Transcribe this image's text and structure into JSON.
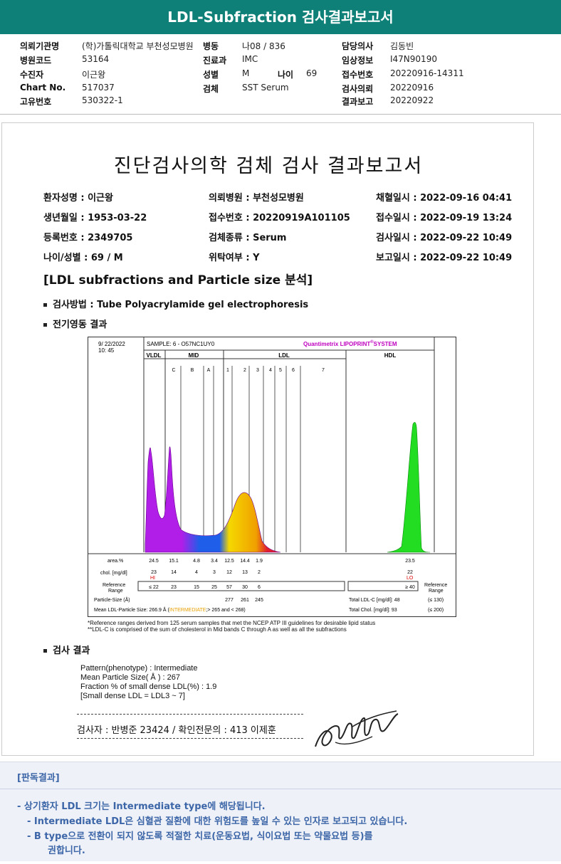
{
  "header": {
    "title": "LDL-Subfraction 검사결과보고서",
    "labels": {
      "institution": "의뢰기관명",
      "hospital_code": "병원코드",
      "patient": "수진자",
      "chart_no": "Chart No.",
      "unique_no": "고유번호",
      "ward": "병동",
      "dept": "진료과",
      "sex": "성별",
      "age": "나이",
      "specimen": "검체",
      "doctor": "담당의사",
      "clinical_info": "임상정보",
      "receipt_no": "접수번호",
      "request_date": "검사의뢰",
      "report_date": "결과보고"
    },
    "values": {
      "institution": "(학)가톨릭대학교 부천성모병원",
      "hospital_code": "53164",
      "patient": "이근왕",
      "chart_no": "517037",
      "unique_no": "530322-1",
      "ward": "나08 / 836",
      "dept": "IMC",
      "sex": "M",
      "age": "69",
      "specimen": "SST Serum",
      "doctor": "김동빈",
      "clinical_info": "I47N90190",
      "receipt_no": "20220916-14311",
      "request_date": "20220916",
      "report_date": "20220922"
    }
  },
  "report": {
    "title": "진단검사의학 검체 검사 결과보고서",
    "info": [
      [
        "환자성명 : 이근왕",
        "의뢰병원 : 부천성모병원",
        "채혈일시 : 2022-09-16 04:41"
      ],
      [
        "생년월일 : 1953-03-22",
        "접수번호 : 20220919A101105",
        "접수일시 : 2022-09-19 13:24"
      ],
      [
        "등록번호 : 2349705",
        "검체종류 : Serum",
        "검사일시 : 2022-09-22 10:49"
      ],
      [
        "나이/성별 : 69 / M",
        "위탁여부 : Y",
        "보고일시 : 2022-09-22 10:49"
      ]
    ],
    "section": "[LDL subfractions and Particle size 분석]",
    "method": "검사방법 : Tube Polyacrylamide gel electrophoresis",
    "electro": "전기영동 결과",
    "result_heading": "검사 결과",
    "footnote1": "*Reference ranges derived from 125 serum samples that met the NCEP ATP III guidelines for desirable lipid status",
    "footnote2": "**LDL-C is comprised of the sum of cholesterol in Mid bands C through A as well as all the subfractions",
    "results": [
      "Pattern(phenotype) : Intermediate",
      "Mean Particle Size( Å ) : 267",
      "Fraction % of small dense LDL(%) : 1.9",
      "[Small dense LDL = LDL3 ~ 7]"
    ],
    "examiner": "검사자 : 반병준  23424  /  확인전문의 : 413  이제훈"
  },
  "chart": {
    "date": "9/ 22/2022",
    "time": "10: 45",
    "sample": "SAMPLE:   6 - O57NC1UY0",
    "brand": "Quantimetrix LIPOPRINT",
    "brand_reg": "®",
    "brand_tail": "SYSTEM",
    "groups": [
      "VLDL",
      "MID",
      "LDL",
      "HDL"
    ],
    "bands": [
      "C",
      "B",
      "A",
      "1",
      "2",
      "3",
      "4",
      "5",
      "6",
      "7"
    ],
    "row_labels": {
      "area": "area.%",
      "chol": "chol. [mg/dl]",
      "ref1": "Reference",
      "ref2": "Range"
    },
    "area": [
      "24.5",
      "15.1",
      "4.8",
      "3.4",
      "12.5",
      "14.4",
      "1.9",
      "23.5"
    ],
    "chol": [
      "23",
      "14",
      "4",
      "3",
      "12",
      "13",
      "2",
      "22"
    ],
    "hi": "HI",
    "lo": "LO",
    "ref": [
      "≤ 22",
      "23",
      "15",
      "25",
      "57",
      "30",
      "6",
      "≥ 40"
    ],
    "particle_label": "Particle-Size (Å)",
    "particle": [
      "277",
      "261",
      "245"
    ],
    "mean_label": "Mean LDL-Particle Size:  266.9 Å (",
    "mean_mid": "INTERMEDIATE",
    "mean_tail": ";> 265 and < 268)",
    "total_ldl": "Total LDL-C [mg/dl]:  48",
    "total_ldl_ref": "(≤ 130)",
    "total_chol": "Total Chol. [mg/dl]:   93",
    "total_chol_ref": "(≤ 200)",
    "hdl_ref_label1": "Reference",
    "hdl_ref_label2": "Range",
    "colors": {
      "vldl": "#b01ee8",
      "mid": "#1e5ee8",
      "ldl": "#f5d800",
      "small": "#e01e2e",
      "hdl": "#22dd22"
    }
  },
  "judgement": {
    "title": "[판독결과]",
    "lines": [
      "-  상기환자 LDL 크기는 Intermediate type에 해당됩니다.",
      "-  Intermediate LDL은 심혈관 질환에 대한 위험도를 높일 수 있는 인자로 보고되고 있습니다.",
      "-  B type으로 전환이 되지 않도록 적절한 치료(운동요법, 식이요법 또는 약물요법 등)를",
      "권합니다."
    ]
  }
}
